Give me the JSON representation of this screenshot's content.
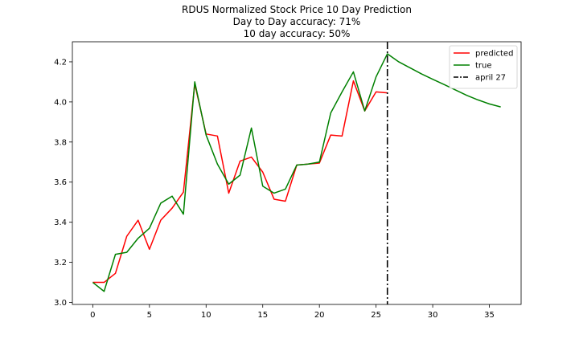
{
  "chart_data": {
    "type": "line",
    "title_lines": [
      "RDUS Normalized Stock Price 10 Day Prediction",
      "Day to Day accuracy: 71%",
      "10 day accuracy: 50%"
    ],
    "xlabel": "",
    "ylabel": "",
    "xlim": [
      -1.8,
      37.8
    ],
    "ylim": [
      2.99,
      4.3
    ],
    "x_ticks": [
      0,
      5,
      10,
      15,
      20,
      25,
      30,
      35
    ],
    "y_ticks": [
      3.0,
      3.2,
      3.4,
      3.6,
      3.8,
      4.0,
      4.2
    ],
    "y_tick_labels": [
      "3.0",
      "3.2",
      "3.4",
      "3.6",
      "3.8",
      "4.0",
      "4.2"
    ],
    "grid": false,
    "legend_position": "top-right",
    "series": [
      {
        "name": "predicted",
        "color": "#ff0000",
        "style": "solid",
        "x": [
          0,
          1,
          2,
          3,
          4,
          5,
          6,
          7,
          8,
          9,
          10,
          11,
          12,
          13,
          14,
          15,
          16,
          17,
          18,
          19,
          20,
          21,
          22,
          23,
          24,
          25,
          26
        ],
        "values": [
          3.1,
          3.1,
          3.145,
          3.33,
          3.41,
          3.265,
          3.41,
          3.47,
          3.55,
          4.09,
          3.84,
          3.83,
          3.545,
          3.705,
          3.725,
          3.65,
          3.515,
          3.505,
          3.685,
          3.69,
          3.695,
          3.835,
          3.83,
          4.105,
          3.955,
          4.05,
          4.045
        ]
      },
      {
        "name": "true",
        "color": "#008000",
        "style": "solid",
        "x": [
          0,
          1,
          2,
          3,
          4,
          5,
          6,
          7,
          8,
          9,
          10,
          11,
          12,
          13,
          14,
          15,
          16,
          17,
          18,
          19,
          20,
          21,
          22,
          23,
          24,
          25,
          26,
          27,
          28,
          29,
          30,
          31,
          32,
          33,
          34,
          35,
          36
        ],
        "values": [
          3.1,
          3.055,
          3.24,
          3.25,
          3.32,
          3.37,
          3.495,
          3.53,
          3.44,
          4.1,
          3.835,
          3.69,
          3.59,
          3.635,
          3.87,
          3.58,
          3.545,
          3.565,
          3.685,
          3.69,
          3.7,
          3.945,
          4.05,
          4.15,
          3.955,
          4.125,
          4.24,
          4.2,
          4.17,
          4.14,
          4.113,
          4.087,
          4.06,
          4.033,
          4.01,
          3.99,
          3.975
        ]
      }
    ],
    "vlines": [
      {
        "name": "april 27",
        "x": 26,
        "color": "#000000",
        "style": "dashdot"
      }
    ]
  }
}
